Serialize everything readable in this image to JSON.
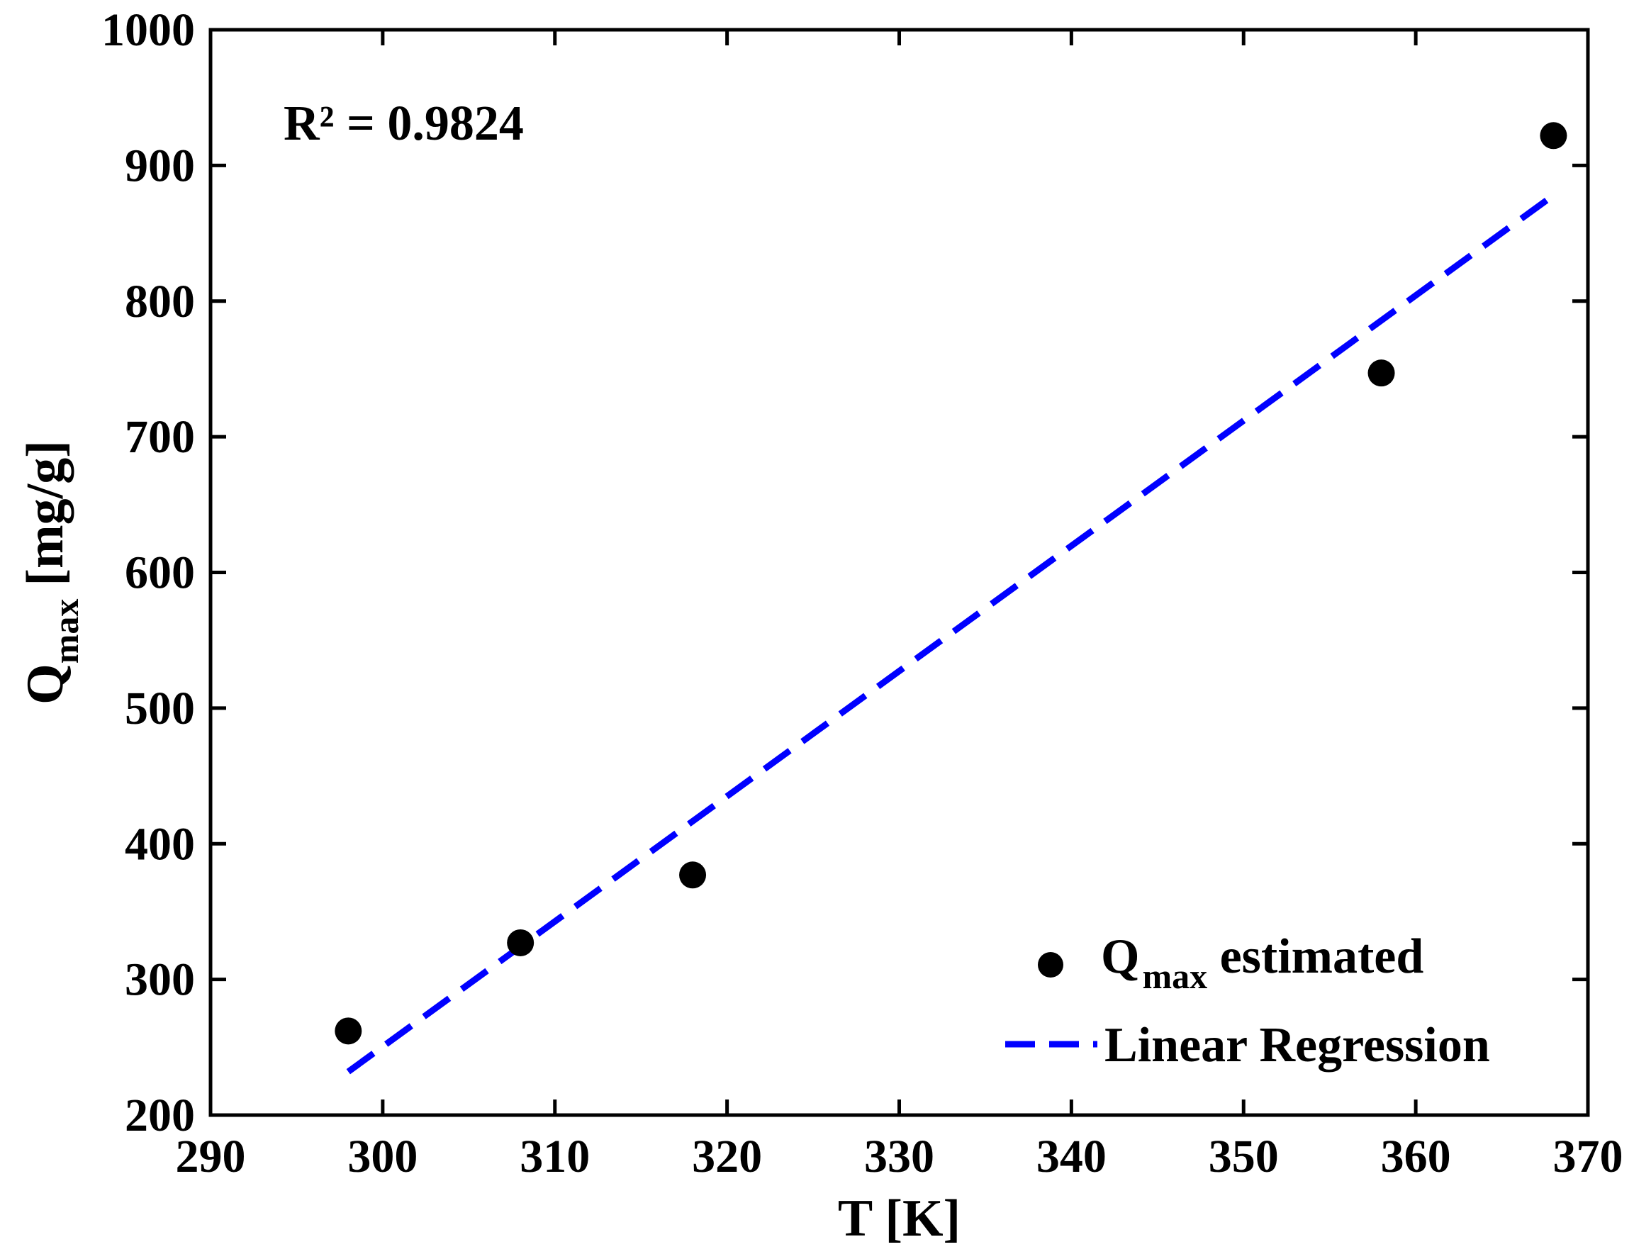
{
  "chart_data": {
    "type": "scatter",
    "title": "",
    "xlabel": "T [K]",
    "ylabel": {
      "main": "Q",
      "sub": "max",
      "unit": "[mg/g]"
    },
    "xlim": [
      290,
      370
    ],
    "ylim": [
      200,
      1000
    ],
    "xticks": [
      "290",
      "300",
      "310",
      "320",
      "330",
      "340",
      "350",
      "360",
      "370"
    ],
    "yticks": [
      "200",
      "300",
      "400",
      "500",
      "600",
      "700",
      "800",
      "900",
      "1000"
    ],
    "annotation": "R² = 0.9824",
    "series": [
      {
        "name": "Q_max estimated",
        "kind": "scatter",
        "color": "#000000",
        "x": [
          298,
          308,
          318,
          358,
          368
        ],
        "y": [
          262,
          327,
          377,
          747,
          922
        ]
      },
      {
        "name": "Linear Regression",
        "kind": "line",
        "style": "dashed",
        "color": "#0000ff",
        "x": [
          298,
          368
        ],
        "y": [
          232,
          878
        ]
      }
    ],
    "legend": {
      "position": "bottom-right",
      "items": [
        {
          "main": "Q",
          "sub": "max",
          "rest": " estimated"
        },
        {
          "main": "Linear Regression"
        }
      ]
    }
  }
}
